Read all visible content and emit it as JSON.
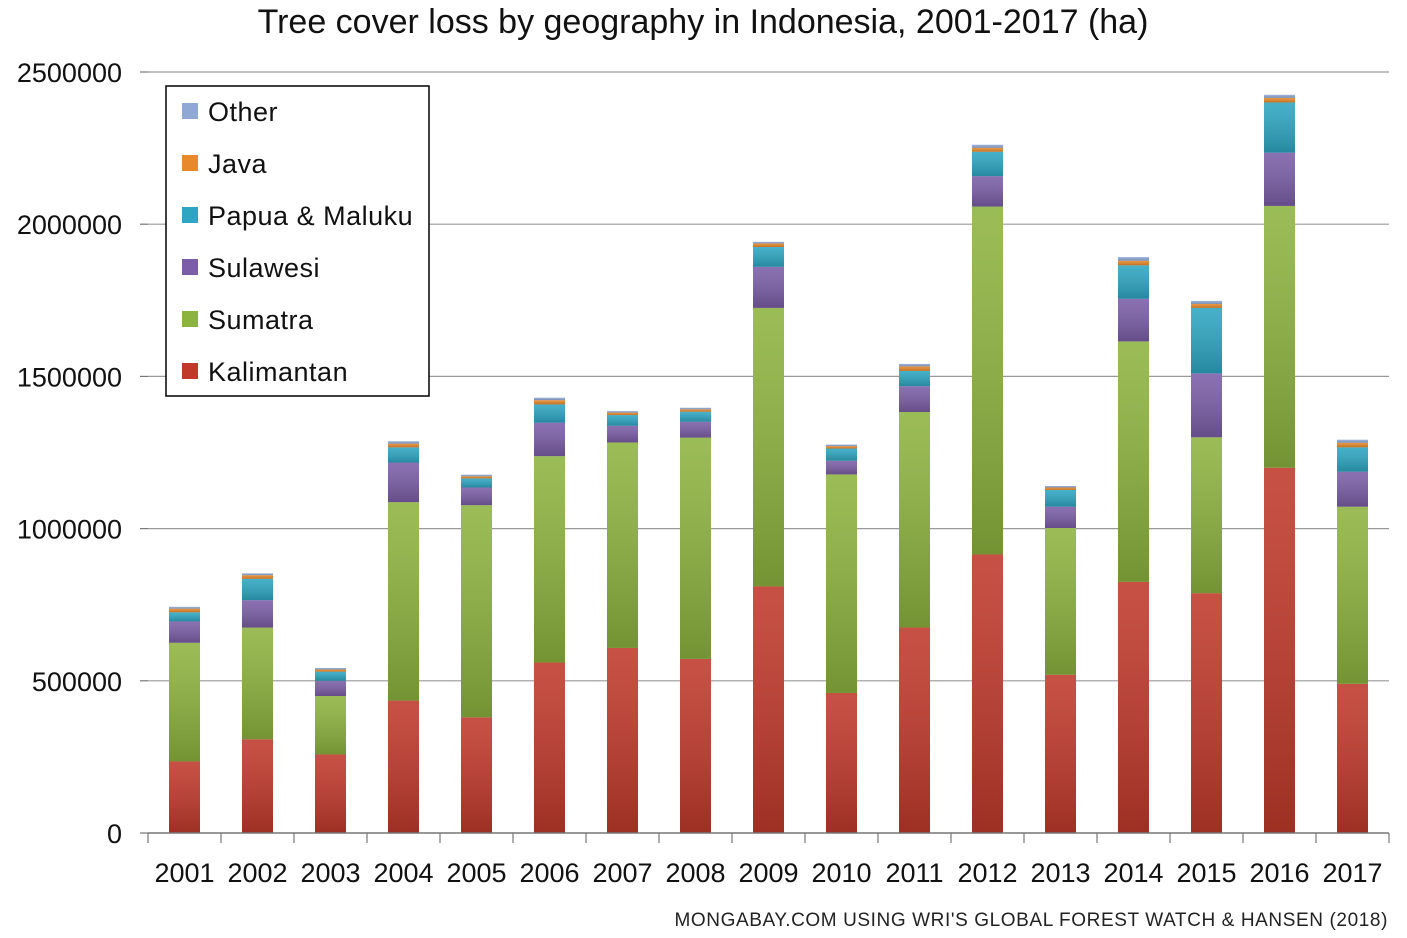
{
  "chart_data": {
    "type": "bar",
    "stacked": true,
    "title": "Tree cover loss by geography in Indonesia, 2001-2017 (ha)",
    "source": "MONGABAY.COM USING WRI'S GLOBAL FOREST WATCH & HANSEN (2018)",
    "categories": [
      "2001",
      "2002",
      "2003",
      "2004",
      "2005",
      "2006",
      "2007",
      "2008",
      "2009",
      "2010",
      "2011",
      "2012",
      "2013",
      "2014",
      "2015",
      "2016",
      "2017"
    ],
    "ylim": [
      0,
      2500000
    ],
    "yticks": [
      0,
      500000,
      1000000,
      1500000,
      2000000,
      2500000
    ],
    "grid": true,
    "legend_position": "top-left",
    "series": [
      {
        "name": "Kalimantan",
        "color": "#c0392b",
        "values": [
          235000,
          308000,
          258000,
          435000,
          380000,
          560000,
          608000,
          572000,
          810000,
          460000,
          675000,
          915000,
          520000,
          825000,
          788000,
          1200000,
          490000
        ]
      },
      {
        "name": "Sumatra",
        "color": "#8db33f",
        "values": [
          390000,
          367000,
          192000,
          652000,
          697000,
          678000,
          675000,
          727000,
          915000,
          718000,
          708000,
          1143000,
          482000,
          790000,
          512000,
          860000,
          582000
        ]
      },
      {
        "name": "Sulawesi",
        "color": "#7b5ea7",
        "values": [
          70000,
          90000,
          50000,
          130000,
          58000,
          110000,
          55000,
          52000,
          135000,
          45000,
          85000,
          100000,
          70000,
          140000,
          210000,
          175000,
          115000
        ]
      },
      {
        "name": "Papua & Maluku",
        "color": "#2ea6c2",
        "values": [
          30000,
          70000,
          30000,
          50000,
          30000,
          60000,
          35000,
          33000,
          65000,
          40000,
          50000,
          80000,
          55000,
          110000,
          215000,
          165000,
          80000
        ]
      },
      {
        "name": "Java",
        "color": "#e8892b",
        "values": [
          12000,
          12000,
          7000,
          12000,
          7000,
          14000,
          8000,
          8000,
          12000,
          8000,
          15000,
          13000,
          8000,
          15000,
          13000,
          15000,
          15000
        ]
      },
      {
        "name": "Other",
        "color": "#8fa8d4",
        "values": [
          6000,
          6000,
          5000,
          8000,
          5000,
          8000,
          5000,
          5000,
          5000,
          5000,
          8000,
          10000,
          5000,
          12000,
          10000,
          10000,
          10000
        ]
      }
    ]
  }
}
